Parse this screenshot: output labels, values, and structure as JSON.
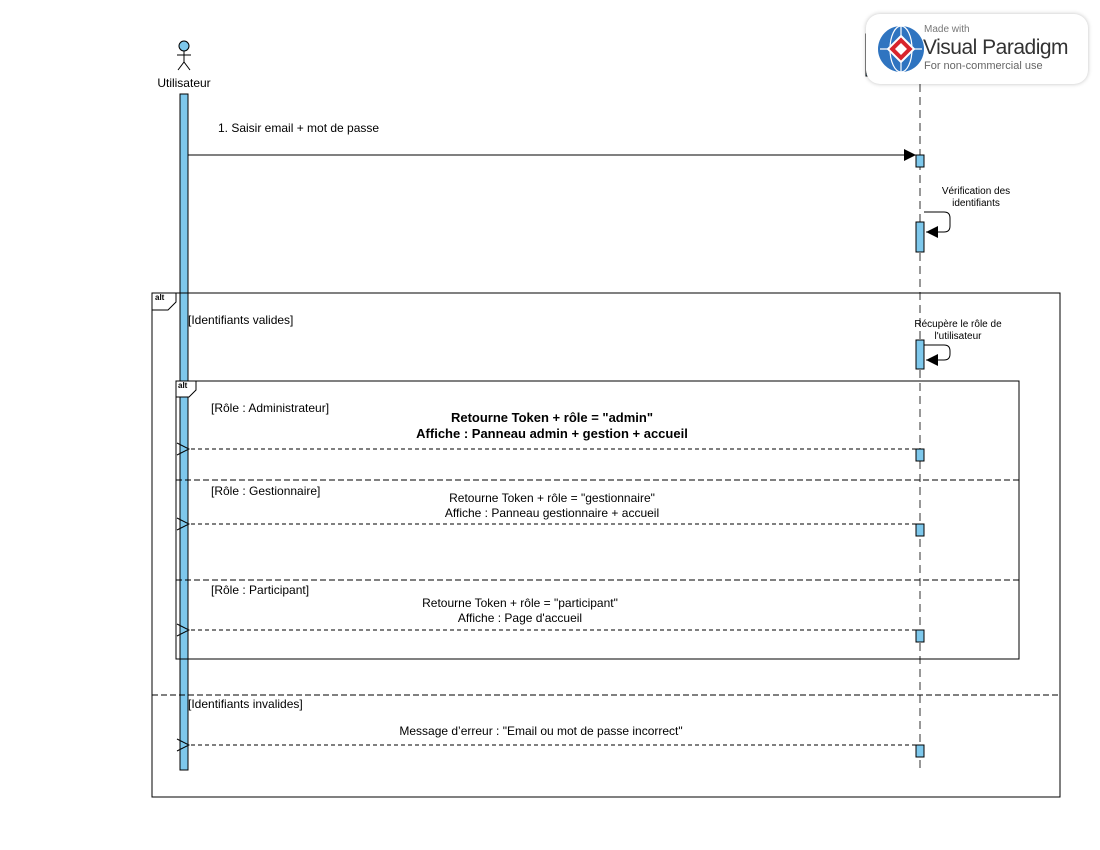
{
  "participants": {
    "user": {
      "label": "Utilisateur"
    }
  },
  "messages": {
    "m1": "1. Saisir email + mot de passe",
    "self_verif_line1": "Vérification des",
    "self_verif_line2": "identifiants",
    "self_role_line1": "Récupère le rôle de",
    "self_role_line2": "l'utilisateur",
    "admin_line1": "Retourne Token + rôle = \"admin\"",
    "admin_line2": "Affiche : Panneau admin + gestion + accueil",
    "gest_line1": "Retourne Token + rôle = \"gestionnaire\"",
    "gest_line2": "Affiche : Panneau gestionnaire + accueil",
    "part_line1": "Retourne Token + rôle = \"participant\"",
    "part_line2": "Affiche : Page d'accueil",
    "error": "Message d’erreur : \"Email ou mot de passe incorrect\""
  },
  "fragments": {
    "outer": {
      "operator": "alt",
      "guard_valid": "[Identifiants valides]",
      "guard_invalid": "[Identifiants invalides]"
    },
    "inner": {
      "operator": "alt",
      "guard_admin": "[Rôle : Administrateur]",
      "guard_gest": "[Rôle : Gestionnaire]",
      "guard_part": "[Rôle : Participant]"
    }
  },
  "watermark": {
    "made_with": "Made with",
    "brand": "Visual Paradigm",
    "use": "For non-commercial use"
  },
  "colors": {
    "activation_fill": "#7ec8ec",
    "line": "#000000",
    "lifeline": "#777777"
  }
}
